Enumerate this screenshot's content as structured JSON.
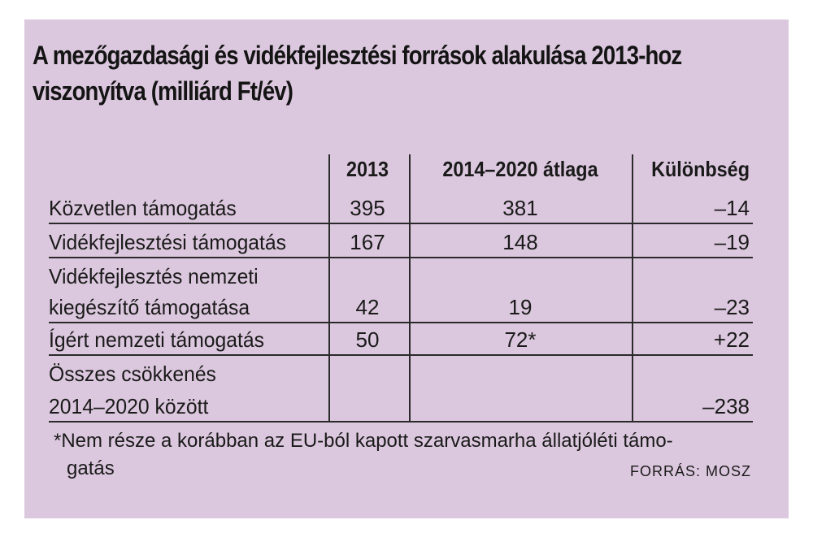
{
  "title": {
    "line1": "A mezőgazdasági és vidékfejlesztési források alakulása 2013-hoz",
    "line2": "viszonyítva (milliárd Ft/év)"
  },
  "table": {
    "headers": [
      "2013",
      "2014–2020 átlaga",
      "Különbség"
    ],
    "rows": [
      {
        "label": [
          "Közvetlen támogatás"
        ],
        "v2013": "395",
        "avg": "381",
        "diff": "–14"
      },
      {
        "label": [
          "Vidékfejlesztési támogatás"
        ],
        "v2013": "167",
        "avg": "148",
        "diff": "–19"
      },
      {
        "label": [
          "Vidékfejlesztés nemzeti",
          "kiegészítő támogatása"
        ],
        "v2013": "42",
        "avg": "19",
        "diff": "–23"
      },
      {
        "label": [
          "Ígért nemzeti támogatás"
        ],
        "v2013": "50",
        "avg": "72*",
        "diff": "+22"
      },
      {
        "label": [
          "Összes csökkenés",
          "2014–2020 között"
        ],
        "v2013": "",
        "avg": "",
        "diff": "–238"
      }
    ]
  },
  "footnote": {
    "line1": "*Nem része a korábban az EU-ból kapott szarvasmarha állatjóléti támo-",
    "line2": "gatás"
  },
  "source": "FORRÁS: MOSZ"
}
